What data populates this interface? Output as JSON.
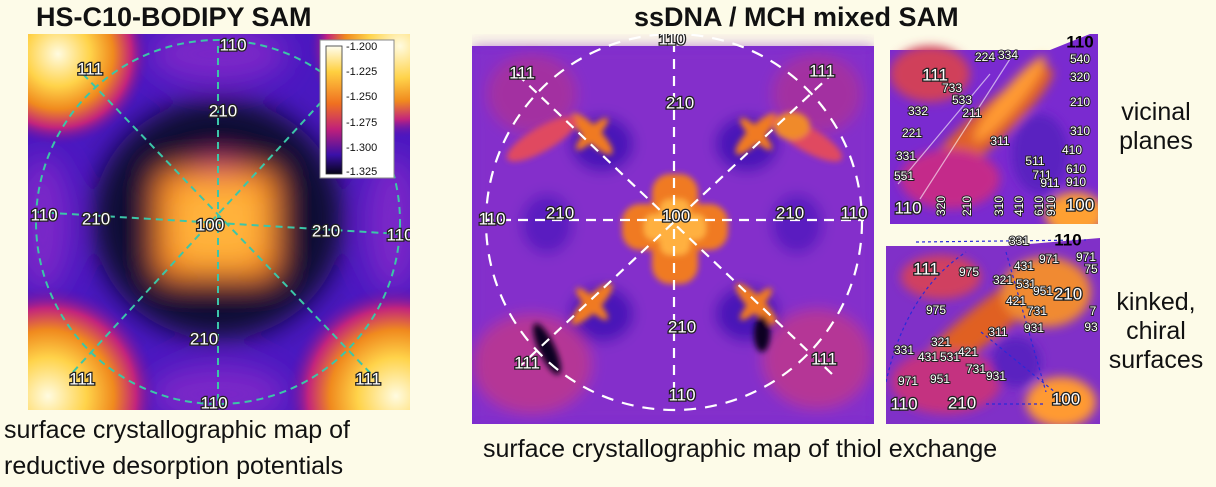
{
  "left": {
    "title": "HS-C10-BODIPY SAM",
    "caption_line1": "surface crystallographic map of",
    "caption_line2": "reductive desorption potentials",
    "labels": {
      "top": "110",
      "bottom": "110",
      "left": "110",
      "right": "110",
      "center": "100",
      "tl": "111",
      "bl": "111",
      "br": "111",
      "t210": "210",
      "b210": "210",
      "l210": "210",
      "r210": "210"
    },
    "colorbar": [
      "-1.200",
      "-1.225",
      "-1.250",
      "-1.275",
      "-1.300",
      "-1.325"
    ]
  },
  "middle": {
    "title": "ssDNA / MCH mixed SAM",
    "caption": "surface crystallographic map of thiol exchange",
    "labels": {
      "top": "110",
      "bottom": "110",
      "left": "110",
      "right": "110",
      "center": "100",
      "tl": "111",
      "tr": "111",
      "bl": "111",
      "br": "111",
      "t210": "210",
      "b210": "210",
      "l210": "210",
      "r210": "210"
    }
  },
  "vicinal": {
    "label_line1": "vicinal",
    "label_line2": "planes",
    "big": {
      "corner110": "110",
      "c111": "111",
      "b110": "110",
      "b100": "100"
    },
    "small": [
      "332",
      "221",
      "331",
      "551",
      "733",
      "533",
      "211",
      "311",
      "511",
      "711",
      "911",
      "224",
      "334",
      "540",
      "320",
      "210",
      "310",
      "410",
      "610",
      "910",
      "320",
      "210",
      "310",
      "410",
      "610",
      "910"
    ]
  },
  "kinked": {
    "label_line1": "kinked,",
    "label_line2": "chiral",
    "label_line3": "surfaces",
    "big": {
      "corner110": "110",
      "c111": "111",
      "c210a": "210",
      "b110": "110",
      "b210": "210",
      "b100": "100"
    },
    "small": [
      "331",
      "971",
      "975",
      "431",
      "321",
      "531",
      "951",
      "421",
      "731",
      "931",
      "975",
      "311",
      "331",
      "321",
      "431",
      "531",
      "421",
      "971",
      "951",
      "731",
      "931",
      "971",
      "75",
      "93",
      "7"
    ]
  }
}
